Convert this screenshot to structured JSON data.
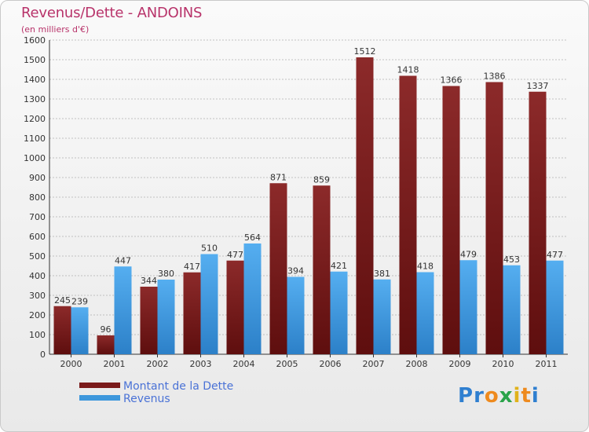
{
  "colors": {
    "title": "#b8336a",
    "dette": "#7a1a1a",
    "revenus": "#3d97dc",
    "legend_text": "#4a72d6",
    "grid": "#b0b0b0"
  },
  "chart_data": {
    "type": "bar",
    "title": "Revenus/Dette - ANDOINS",
    "subtitle": "(en milliers d'€)",
    "categories": [
      "2000",
      "2001",
      "2002",
      "2003",
      "2004",
      "2005",
      "2006",
      "2007",
      "2008",
      "2009",
      "2010",
      "2011"
    ],
    "series": [
      {
        "name": "Montant de la Dette",
        "values": [
          245,
          96,
          344,
          417,
          477,
          871,
          859,
          1512,
          1418,
          1366,
          1386,
          1337
        ]
      },
      {
        "name": "Revenus",
        "values": [
          239,
          447,
          380,
          510,
          564,
          394,
          421,
          381,
          418,
          479,
          453,
          477
        ]
      }
    ],
    "ylim": [
      0,
      1600
    ],
    "yticks": [
      0,
      100,
      200,
      300,
      400,
      500,
      600,
      700,
      800,
      900,
      1000,
      1100,
      1200,
      1300,
      1400,
      1500,
      1600
    ],
    "grid": true,
    "legend_position": "bottom-left"
  },
  "logo": {
    "text": "Proxiti",
    "letter_colors": [
      "#2f7fd0",
      "#2f7fd0",
      "#ee8a1e",
      "#2aa34a",
      "#e0b21a",
      "#ee8a1e",
      "#2f7fd0"
    ]
  }
}
